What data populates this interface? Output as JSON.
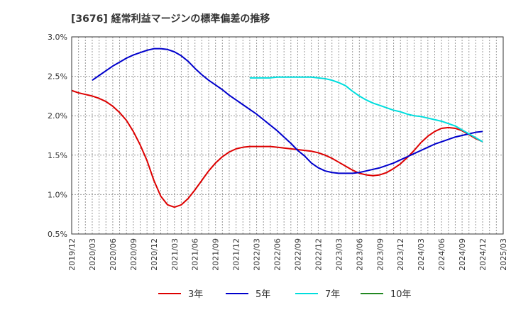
{
  "chart_data": {
    "type": "line",
    "title": "[3676]  経常利益マージンの標準偏差の推移",
    "xlabel": "",
    "ylabel": "",
    "ylim": [
      0.5,
      3.0
    ],
    "yticks": [
      0.5,
      1.0,
      1.5,
      2.0,
      2.5,
      3.0
    ],
    "ytick_labels": [
      "0.5%",
      "1.0%",
      "1.5%",
      "2.0%",
      "2.5%",
      "3.0%"
    ],
    "xticks": [
      "2019/12",
      "2020/03",
      "2020/06",
      "2020/09",
      "2020/12",
      "2021/03",
      "2021/06",
      "2021/09",
      "2021/12",
      "2022/03",
      "2022/06",
      "2022/09",
      "2022/12",
      "2023/03",
      "2023/06",
      "2023/09",
      "2023/12",
      "2024/03",
      "2024/06",
      "2024/09",
      "2024/12",
      "2025/03"
    ],
    "grid": true,
    "legend_position": "bottom",
    "series": [
      {
        "name": "3年",
        "color": "#dd0000",
        "points": [
          [
            "2019/12",
            2.32
          ],
          [
            "2020/01",
            2.29
          ],
          [
            "2020/02",
            2.27
          ],
          [
            "2020/03",
            2.25
          ],
          [
            "2020/04",
            2.22
          ],
          [
            "2020/05",
            2.18
          ],
          [
            "2020/06",
            2.12
          ],
          [
            "2020/07",
            2.04
          ],
          [
            "2020/08",
            1.94
          ],
          [
            "2020/09",
            1.8
          ],
          [
            "2020/10",
            1.63
          ],
          [
            "2020/11",
            1.43
          ],
          [
            "2020/12",
            1.18
          ],
          [
            "2021/01",
            0.98
          ],
          [
            "2021/02",
            0.87
          ],
          [
            "2021/03",
            0.84
          ],
          [
            "2021/04",
            0.87
          ],
          [
            "2021/05",
            0.95
          ],
          [
            "2021/06",
            1.06
          ],
          [
            "2021/07",
            1.18
          ],
          [
            "2021/08",
            1.3
          ],
          [
            "2021/09",
            1.4
          ],
          [
            "2021/10",
            1.48
          ],
          [
            "2021/11",
            1.54
          ],
          [
            "2021/12",
            1.58
          ],
          [
            "2022/01",
            1.6
          ],
          [
            "2022/02",
            1.61
          ],
          [
            "2022/03",
            1.61
          ],
          [
            "2022/04",
            1.61
          ],
          [
            "2022/05",
            1.61
          ],
          [
            "2022/06",
            1.6
          ],
          [
            "2022/07",
            1.59
          ],
          [
            "2022/08",
            1.58
          ],
          [
            "2022/09",
            1.57
          ],
          [
            "2022/10",
            1.56
          ],
          [
            "2022/11",
            1.55
          ],
          [
            "2022/12",
            1.53
          ],
          [
            "2023/01",
            1.5
          ],
          [
            "2023/02",
            1.46
          ],
          [
            "2023/03",
            1.41
          ],
          [
            "2023/04",
            1.36
          ],
          [
            "2023/05",
            1.31
          ],
          [
            "2023/06",
            1.27
          ],
          [
            "2023/07",
            1.25
          ],
          [
            "2023/08",
            1.24
          ],
          [
            "2023/09",
            1.25
          ],
          [
            "2023/10",
            1.28
          ],
          [
            "2023/11",
            1.33
          ],
          [
            "2023/12",
            1.39
          ],
          [
            "2024/01",
            1.47
          ],
          [
            "2024/02",
            1.56
          ],
          [
            "2024/03",
            1.66
          ],
          [
            "2024/04",
            1.74
          ],
          [
            "2024/05",
            1.8
          ],
          [
            "2024/06",
            1.84
          ],
          [
            "2024/07",
            1.85
          ],
          [
            "2024/08",
            1.84
          ],
          [
            "2024/09",
            1.81
          ],
          [
            "2024/10",
            1.76
          ],
          [
            "2024/11",
            1.71
          ],
          [
            "2024/12",
            1.67
          ]
        ]
      },
      {
        "name": "5年",
        "color": "#0000cc",
        "points": [
          [
            "2020/03",
            2.45
          ],
          [
            "2020/04",
            2.51
          ],
          [
            "2020/05",
            2.57
          ],
          [
            "2020/06",
            2.63
          ],
          [
            "2020/07",
            2.68
          ],
          [
            "2020/08",
            2.73
          ],
          [
            "2020/09",
            2.77
          ],
          [
            "2020/10",
            2.8
          ],
          [
            "2020/11",
            2.83
          ],
          [
            "2020/12",
            2.85
          ],
          [
            "2021/01",
            2.85
          ],
          [
            "2021/02",
            2.84
          ],
          [
            "2021/03",
            2.81
          ],
          [
            "2021/04",
            2.76
          ],
          [
            "2021/05",
            2.69
          ],
          [
            "2021/06",
            2.6
          ],
          [
            "2021/07",
            2.52
          ],
          [
            "2021/08",
            2.45
          ],
          [
            "2021/09",
            2.39
          ],
          [
            "2021/10",
            2.33
          ],
          [
            "2021/11",
            2.26
          ],
          [
            "2021/12",
            2.2
          ],
          [
            "2022/01",
            2.14
          ],
          [
            "2022/02",
            2.08
          ],
          [
            "2022/03",
            2.02
          ],
          [
            "2022/04",
            1.95
          ],
          [
            "2022/05",
            1.88
          ],
          [
            "2022/06",
            1.81
          ],
          [
            "2022/07",
            1.73
          ],
          [
            "2022/08",
            1.65
          ],
          [
            "2022/09",
            1.56
          ],
          [
            "2022/10",
            1.49
          ],
          [
            "2022/11",
            1.4
          ],
          [
            "2022/12",
            1.34
          ],
          [
            "2023/01",
            1.3
          ],
          [
            "2023/02",
            1.28
          ],
          [
            "2023/03",
            1.27
          ],
          [
            "2023/04",
            1.27
          ],
          [
            "2023/05",
            1.27
          ],
          [
            "2023/06",
            1.28
          ],
          [
            "2023/07",
            1.3
          ],
          [
            "2023/08",
            1.32
          ],
          [
            "2023/09",
            1.34
          ],
          [
            "2023/10",
            1.37
          ],
          [
            "2023/11",
            1.4
          ],
          [
            "2023/12",
            1.44
          ],
          [
            "2024/01",
            1.48
          ],
          [
            "2024/02",
            1.52
          ],
          [
            "2024/03",
            1.56
          ],
          [
            "2024/04",
            1.6
          ],
          [
            "2024/05",
            1.64
          ],
          [
            "2024/06",
            1.67
          ],
          [
            "2024/07",
            1.7
          ],
          [
            "2024/08",
            1.73
          ],
          [
            "2024/09",
            1.75
          ],
          [
            "2024/10",
            1.77
          ],
          [
            "2024/11",
            1.79
          ],
          [
            "2024/12",
            1.8
          ]
        ]
      },
      {
        "name": "7年",
        "color": "#00dddd",
        "points": [
          [
            "2022/02",
            2.48
          ],
          [
            "2022/03",
            2.48
          ],
          [
            "2022/04",
            2.48
          ],
          [
            "2022/05",
            2.48
          ],
          [
            "2022/06",
            2.49
          ],
          [
            "2022/07",
            2.49
          ],
          [
            "2022/08",
            2.49
          ],
          [
            "2022/09",
            2.49
          ],
          [
            "2022/10",
            2.49
          ],
          [
            "2022/11",
            2.49
          ],
          [
            "2022/12",
            2.48
          ],
          [
            "2023/01",
            2.47
          ],
          [
            "2023/02",
            2.45
          ],
          [
            "2023/03",
            2.42
          ],
          [
            "2023/04",
            2.38
          ],
          [
            "2023/05",
            2.31
          ],
          [
            "2023/06",
            2.25
          ],
          [
            "2023/07",
            2.2
          ],
          [
            "2023/08",
            2.16
          ],
          [
            "2023/09",
            2.13
          ],
          [
            "2023/10",
            2.1
          ],
          [
            "2023/11",
            2.07
          ],
          [
            "2023/12",
            2.05
          ],
          [
            "2024/01",
            2.02
          ],
          [
            "2024/02",
            2.0
          ],
          [
            "2024/03",
            1.99
          ],
          [
            "2024/04",
            1.97
          ],
          [
            "2024/05",
            1.95
          ],
          [
            "2024/06",
            1.93
          ],
          [
            "2024/07",
            1.9
          ],
          [
            "2024/08",
            1.87
          ],
          [
            "2024/09",
            1.82
          ],
          [
            "2024/10",
            1.77
          ],
          [
            "2024/11",
            1.72
          ],
          [
            "2024/12",
            1.67
          ]
        ]
      },
      {
        "name": "10年",
        "color": "#228822",
        "points": []
      }
    ]
  }
}
